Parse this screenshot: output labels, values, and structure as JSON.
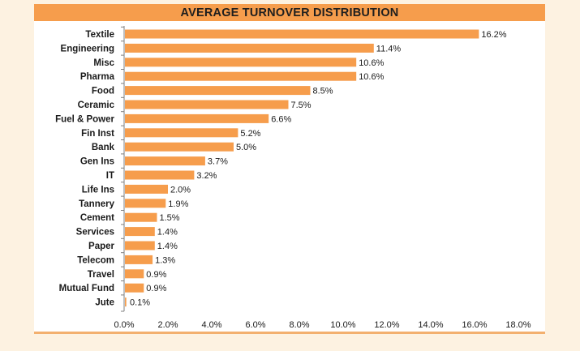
{
  "chart_data": {
    "type": "bar",
    "orientation": "horizontal",
    "title": "AVERAGE TURNOVER DISTRIBUTION",
    "categories": [
      "Textile",
      "Engineering",
      "Misc",
      "Pharma",
      "Food",
      "Ceramic",
      "Fuel & Power",
      "Fin Inst",
      "Bank",
      "Gen Ins",
      "IT",
      "Life Ins",
      "Tannery",
      "Cement",
      "Services",
      "Paper",
      "Telecom",
      "Travel",
      "Mutual Fund",
      "Jute"
    ],
    "values": [
      16.2,
      11.4,
      10.6,
      10.6,
      8.5,
      7.5,
      6.6,
      5.2,
      5.0,
      3.7,
      3.2,
      2.0,
      1.9,
      1.5,
      1.4,
      1.4,
      1.3,
      0.9,
      0.9,
      0.1
    ],
    "value_labels": [
      "16.2%",
      "11.4%",
      "10.6%",
      "10.6%",
      "8.5%",
      "7.5%",
      "6.6%",
      "5.2%",
      "5.0%",
      "3.7%",
      "3.2%",
      "2.0%",
      "1.9%",
      "1.5%",
      "1.4%",
      "1.4%",
      "1.3%",
      "0.9%",
      "0.9%",
      "0.1%"
    ],
    "xlim": [
      0,
      18
    ],
    "xticks": [
      "0.0%",
      "2.0%",
      "4.0%",
      "6.0%",
      "8.0%",
      "10.0%",
      "12.0%",
      "14.0%",
      "16.0%",
      "18.0%"
    ],
    "xlabel": "",
    "ylabel": "",
    "grid": false,
    "legend": "none",
    "colors": {
      "bar": "#f69d4c",
      "title_band": "#f69d4c",
      "background": "#fdf2e1",
      "axis": "#7f7f7f"
    }
  }
}
